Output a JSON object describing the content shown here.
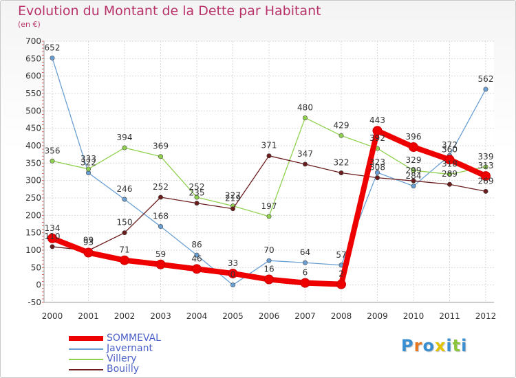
{
  "title": "Evolution du Montant de la Dette par Habitant",
  "subtitle": "(en €)",
  "logo": {
    "text": "Proxiti",
    "colors": [
      "#3a8fd0",
      "#e87722",
      "#3a8fd0",
      "#e0c400",
      "#3a8fd0",
      "#8cc63f",
      "#3a8fd0"
    ]
  },
  "chart_data": {
    "type": "line",
    "title": "Evolution du Montant de la Dette par Habitant",
    "subtitle": "(en €)",
    "x": [
      "2000",
      "2001",
      "2002",
      "2003",
      "2004",
      "2005",
      "2006",
      "2007",
      "2008",
      "2009",
      "2010",
      "2011",
      "2012"
    ],
    "ylim": [
      -50,
      700
    ],
    "yticks": [
      -50,
      0,
      50,
      100,
      150,
      200,
      250,
      300,
      350,
      400,
      450,
      500,
      550,
      600,
      650,
      700
    ],
    "grid": true,
    "legend_position": "bottom-left",
    "series": [
      {
        "name": "SOMMEVAL",
        "color": "#ee0000",
        "values": [
          134,
          93,
          71,
          59,
          46,
          33,
          16,
          6,
          2,
          443,
          396,
          360,
          313
        ]
      },
      {
        "name": "Javernant",
        "color": "#6a9fd4",
        "values": [
          652,
          322,
          246,
          168,
          86,
          0,
          70,
          64,
          57,
          323,
          284,
          372,
          562
        ]
      },
      {
        "name": "Villery",
        "color": "#8fd14f",
        "values": [
          356,
          333,
          394,
          369,
          252,
          227,
          197,
          480,
          429,
          392,
          329,
          318,
          339
        ]
      },
      {
        "name": "Bouilly",
        "color": "#6b1c1c",
        "values": [
          110,
          99,
          150,
          252,
          235,
          219,
          371,
          347,
          322,
          308,
          299,
          289,
          269
        ]
      }
    ]
  }
}
